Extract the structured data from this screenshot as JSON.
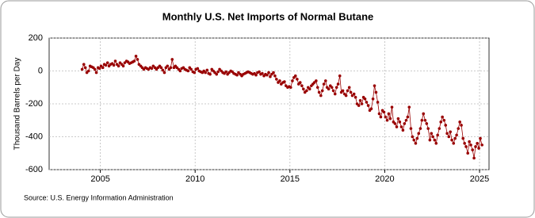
{
  "chart_data": {
    "type": "line",
    "title": "Monthly U.S. Net Imports of Normal Butane",
    "y_label": "Thousand Barrels per Day",
    "source": "Source: U.S. Energy Information Administration",
    "xlim": [
      2002.3,
      2025.5
    ],
    "xticks": [
      2005,
      2010,
      2015,
      2020,
      2025
    ],
    "ylim": [
      -600,
      200
    ],
    "yticks": [
      -600,
      -400,
      -200,
      0,
      200
    ],
    "grid": true,
    "x": [
      2004.04,
      2004.13,
      2004.21,
      2004.29,
      2004.38,
      2004.46,
      2004.54,
      2004.63,
      2004.71,
      2004.79,
      2004.88,
      2004.96,
      2005.04,
      2005.13,
      2005.21,
      2005.29,
      2005.38,
      2005.46,
      2005.54,
      2005.63,
      2005.71,
      2005.79,
      2005.88,
      2005.96,
      2006.04,
      2006.13,
      2006.21,
      2006.29,
      2006.38,
      2006.46,
      2006.54,
      2006.63,
      2006.71,
      2006.79,
      2006.88,
      2006.96,
      2007.04,
      2007.13,
      2007.21,
      2007.29,
      2007.38,
      2007.46,
      2007.54,
      2007.63,
      2007.71,
      2007.79,
      2007.88,
      2007.96,
      2008.04,
      2008.13,
      2008.21,
      2008.29,
      2008.38,
      2008.46,
      2008.54,
      2008.63,
      2008.71,
      2008.79,
      2008.88,
      2008.96,
      2009.04,
      2009.13,
      2009.21,
      2009.29,
      2009.38,
      2009.46,
      2009.54,
      2009.63,
      2009.71,
      2009.79,
      2009.88,
      2009.96,
      2010.04,
      2010.13,
      2010.21,
      2010.29,
      2010.38,
      2010.46,
      2010.54,
      2010.63,
      2010.71,
      2010.79,
      2010.88,
      2010.96,
      2011.04,
      2011.13,
      2011.21,
      2011.29,
      2011.38,
      2011.46,
      2011.54,
      2011.63,
      2011.71,
      2011.79,
      2011.88,
      2011.96,
      2012.04,
      2012.13,
      2012.21,
      2012.29,
      2012.38,
      2012.46,
      2012.54,
      2012.63,
      2012.71,
      2012.79,
      2012.88,
      2012.96,
      2013.04,
      2013.13,
      2013.21,
      2013.29,
      2013.38,
      2013.46,
      2013.54,
      2013.63,
      2013.71,
      2013.79,
      2013.88,
      2013.96,
      2014.04,
      2014.13,
      2014.21,
      2014.29,
      2014.38,
      2014.46,
      2014.54,
      2014.63,
      2014.71,
      2014.79,
      2014.88,
      2014.96,
      2015.04,
      2015.13,
      2015.21,
      2015.29,
      2015.38,
      2015.46,
      2015.54,
      2015.63,
      2015.71,
      2015.79,
      2015.88,
      2015.96,
      2016.04,
      2016.13,
      2016.21,
      2016.29,
      2016.38,
      2016.46,
      2016.54,
      2016.63,
      2016.71,
      2016.79,
      2016.88,
      2016.96,
      2017.04,
      2017.13,
      2017.21,
      2017.29,
      2017.38,
      2017.46,
      2017.54,
      2017.63,
      2017.71,
      2017.79,
      2017.88,
      2017.96,
      2018.04,
      2018.13,
      2018.21,
      2018.29,
      2018.38,
      2018.46,
      2018.54,
      2018.63,
      2018.71,
      2018.79,
      2018.88,
      2018.96,
      2019.04,
      2019.13,
      2019.21,
      2019.29,
      2019.38,
      2019.46,
      2019.54,
      2019.63,
      2019.71,
      2019.79,
      2019.88,
      2019.96,
      2020.04,
      2020.13,
      2020.21,
      2020.29,
      2020.38,
      2020.46,
      2020.54,
      2020.63,
      2020.71,
      2020.79,
      2020.88,
      2020.96,
      2021.04,
      2021.13,
      2021.21,
      2021.29,
      2021.38,
      2021.46,
      2021.54,
      2021.63,
      2021.71,
      2021.79,
      2021.88,
      2021.96,
      2022.04,
      2022.13,
      2022.21,
      2022.29,
      2022.38,
      2022.46,
      2022.54,
      2022.63,
      2022.71,
      2022.79,
      2022.88,
      2022.96,
      2023.04,
      2023.13,
      2023.21,
      2023.29,
      2023.38,
      2023.46,
      2023.54,
      2023.63,
      2023.71,
      2023.79,
      2023.88,
      2023.96,
      2024.04,
      2024.13,
      2024.21,
      2024.29,
      2024.38,
      2024.46,
      2024.54,
      2024.63,
      2024.71,
      2024.79,
      2024.88,
      2024.96,
      2025.04,
      2025.13
    ],
    "series": [
      {
        "color": "#990000",
        "values": [
          10,
          40,
          20,
          -10,
          0,
          30,
          25,
          20,
          10,
          -10,
          20,
          15,
          30,
          20,
          40,
          35,
          50,
          30,
          40,
          45,
          35,
          60,
          40,
          30,
          50,
          40,
          30,
          50,
          60,
          55,
          45,
          50,
          55,
          60,
          90,
          70,
          40,
          30,
          20,
          10,
          20,
          15,
          10,
          20,
          15,
          30,
          20,
          10,
          20,
          30,
          20,
          5,
          -10,
          20,
          30,
          10,
          20,
          70,
          20,
          30,
          20,
          10,
          0,
          15,
          20,
          10,
          5,
          0,
          20,
          10,
          -5,
          -10,
          10,
          15,
          0,
          -5,
          -10,
          0,
          -10,
          5,
          -15,
          -20,
          10,
          0,
          -10,
          -20,
          -5,
          10,
          0,
          -10,
          -15,
          -5,
          -20,
          -10,
          0,
          -5,
          -15,
          -20,
          -25,
          -10,
          -20,
          -30,
          -20,
          -15,
          -10,
          -5,
          -10,
          -15,
          -20,
          -15,
          -25,
          -10,
          -5,
          -20,
          -15,
          -30,
          -20,
          -25,
          -10,
          -35,
          -20,
          -10,
          -30,
          -50,
          -70,
          -60,
          -80,
          -70,
          -65,
          -90,
          -100,
          -95,
          -100,
          -60,
          -40,
          -30,
          -50,
          -80,
          -70,
          -90,
          -110,
          -130,
          -120,
          -100,
          -110,
          -90,
          -80,
          -70,
          -60,
          -100,
          -130,
          -150,
          -120,
          -80,
          -60,
          -100,
          -110,
          -90,
          -100,
          -120,
          -140,
          -100,
          -80,
          -30,
          -130,
          -120,
          -140,
          -150,
          -120,
          -100,
          -130,
          -150,
          -140,
          -160,
          -200,
          -210,
          -180,
          -200,
          -160,
          -170,
          -190,
          -210,
          -240,
          -230,
          -170,
          -90,
          -130,
          -190,
          -260,
          -280,
          -240,
          -250,
          -280,
          -300,
          -260,
          -290,
          -220,
          -310,
          -320,
          -340,
          -290,
          -310,
          -340,
          -360,
          -320,
          -300,
          -280,
          -220,
          -350,
          -400,
          -420,
          -440,
          -410,
          -380,
          -350,
          -300,
          -260,
          -300,
          -320,
          -350,
          -420,
          -380,
          -400,
          -420,
          -440,
          -390,
          -350,
          -310,
          -280,
          -300,
          -330,
          -380,
          -400,
          -370,
          -420,
          -440,
          -410,
          -390,
          -350,
          -310,
          -330,
          -410,
          -440,
          -460,
          -500,
          -430,
          -450,
          -480,
          -530,
          -460,
          -440,
          -470,
          -410,
          -450
        ]
      }
    ]
  }
}
